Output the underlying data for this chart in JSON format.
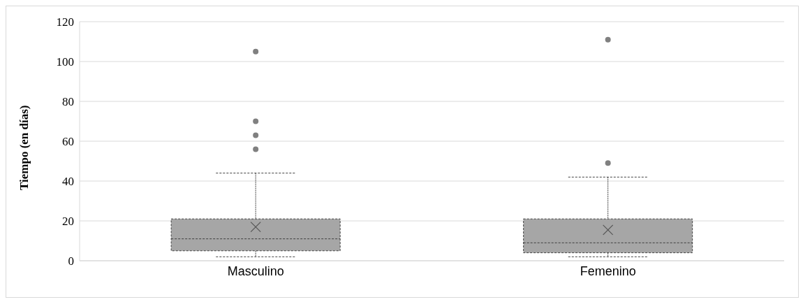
{
  "chart_data": {
    "type": "box",
    "ylabel": "Tiempo (en días)",
    "categories": [
      "Masculino",
      "Femenino"
    ],
    "color": "#a6a6a6",
    "ylim": [
      0,
      120
    ],
    "yticks": [
      0,
      20,
      40,
      60,
      80,
      100,
      120
    ],
    "grid": "y",
    "boxes": [
      {
        "low": 2,
        "q1": 5,
        "median": 11,
        "q3": 21,
        "high": 44,
        "mean": 17,
        "outliers": [
          56,
          63,
          70,
          105
        ]
      },
      {
        "low": 2,
        "q1": 4,
        "median": 9,
        "q3": 21,
        "high": 42,
        "mean": 15.5,
        "outliers": [
          49,
          111
        ]
      }
    ]
  }
}
